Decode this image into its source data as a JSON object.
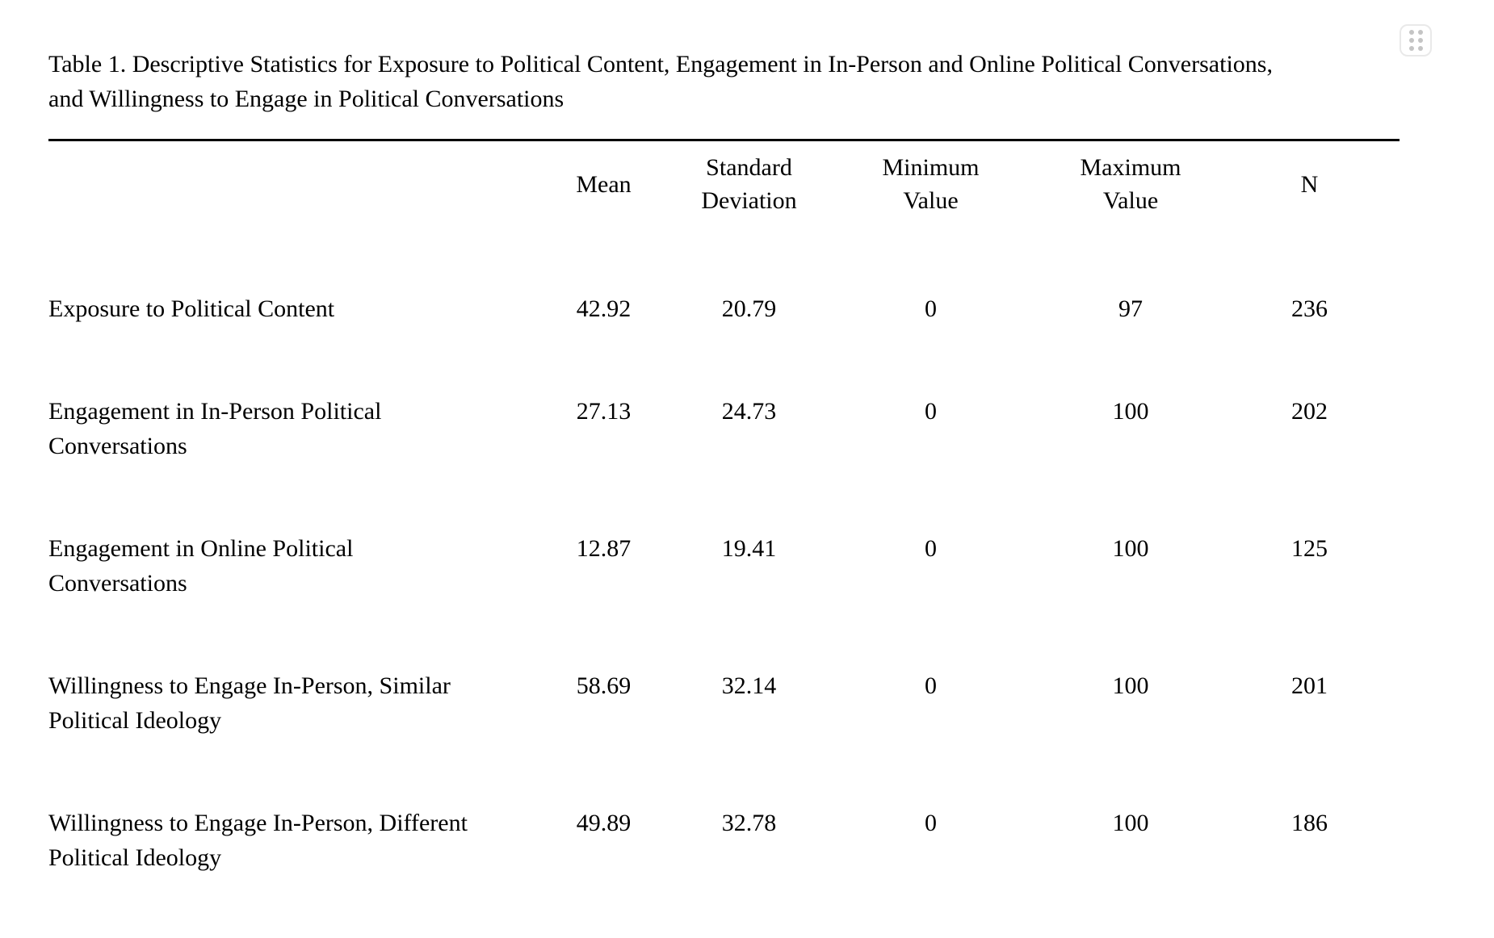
{
  "colors": {
    "text": "#000000",
    "rule": "#000000",
    "handle_border": "#e9e9e9",
    "handle_dots": "#c4c4c4"
  },
  "drag_handle": {
    "icon": "grip-dots-icon"
  },
  "table": {
    "title_lines": [
      "Table 1. Descriptive Statistics for Exposure to Political Content, Engagement in In-Person and Online Political Conversations,",
      "and Willingness to Engage in Political Conversations"
    ],
    "columns": [
      {
        "id": "label",
        "header_lines": []
      },
      {
        "id": "mean",
        "header_lines": [
          "Mean"
        ]
      },
      {
        "id": "sd",
        "header_lines": [
          "Standard",
          "Deviation"
        ]
      },
      {
        "id": "min",
        "header_lines": [
          "Minimum",
          "Value"
        ]
      },
      {
        "id": "max",
        "header_lines": [
          "Maximum",
          "Value"
        ]
      },
      {
        "id": "n",
        "header_lines": [
          "N"
        ]
      }
    ],
    "rows": [
      {
        "label_lines": [
          "Exposure to Political Content"
        ],
        "values": [
          "42.92",
          "20.79",
          "0",
          "97",
          "236"
        ]
      },
      {
        "label_lines": [
          "Engagement in In-Person Political",
          "Conversations"
        ],
        "values": [
          "27.13",
          "24.73",
          "0",
          "100",
          "202"
        ]
      },
      {
        "label_lines": [
          "Engagement in Online Political",
          "Conversations"
        ],
        "values": [
          "12.87",
          "19.41",
          "0",
          "100",
          "125"
        ]
      },
      {
        "label_lines": [
          "Willingness to Engage In-Person, Similar",
          "Political Ideology"
        ],
        "values": [
          "58.69",
          "32.14",
          "0",
          "100",
          "201"
        ]
      },
      {
        "label_lines": [
          "Willingness to Engage In-Person, Different",
          "Political Ideology"
        ],
        "values": [
          "49.89",
          "32.78",
          "0",
          "100",
          "186"
        ]
      }
    ]
  }
}
